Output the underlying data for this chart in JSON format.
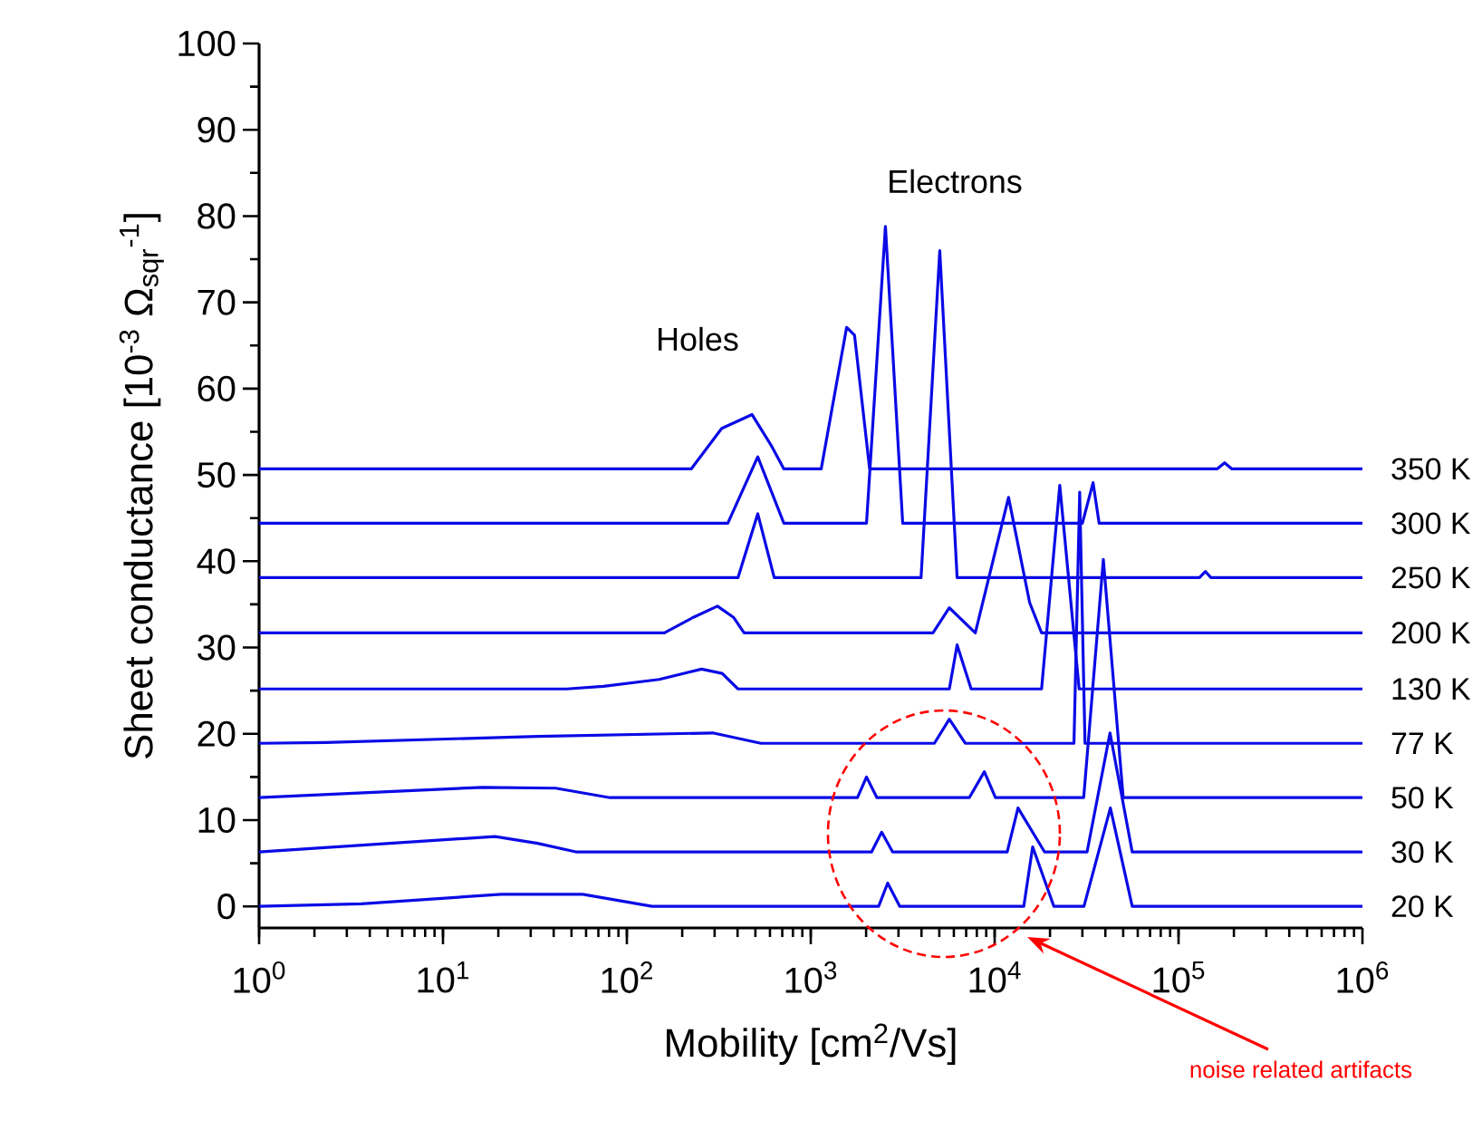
{
  "chart_data": {
    "type": "line",
    "xlabel": "Mobility [cm$^{2}$/Vs]",
    "ylabel": "Sheet conductance [10$^{-3}$ Ω$_{sqr}$$^{-1}$]",
    "annotations": [
      "Holes",
      "Electrons",
      "noise related artifacts"
    ],
    "log": "x",
    "grid": false,
    "legend": false,
    "xlim": [
      1,
      1000000
    ],
    "xticks": [
      {
        "value": 1,
        "label": "10$^{0}$"
      },
      {
        "value": 10,
        "label": "10$^{1}$"
      },
      {
        "value": 100,
        "label": "10$^{2}$"
      },
      {
        "value": 1000,
        "label": "10$^{3}$"
      },
      {
        "value": 10000,
        "label": "10$^{4}$"
      },
      {
        "value": 100000,
        "label": "10$^{5}$"
      },
      {
        "value": 1000000,
        "label": "10$^{6}$"
      }
    ],
    "ylim": [
      -2.5,
      100
    ],
    "yticks": [
      0,
      10,
      20,
      30,
      40,
      50,
      60,
      70,
      80,
      90,
      100
    ],
    "series": [
      {
        "name": "350 K",
        "color": "#0a0ae6",
        "x": [
          1,
          224,
          328,
          479,
          614,
          714,
          1140,
          1567,
          1730,
          2090,
          162000,
          178000,
          195000,
          1000000
        ],
        "values": [
          50.7,
          50.7,
          55.4,
          57.0,
          53.3,
          50.7,
          50.7,
          67.1,
          66.2,
          50.7,
          50.7,
          51.4,
          50.7,
          50.7
        ]
      },
      {
        "name": "300 K",
        "color": "#0a0ae6",
        "x": [
          1,
          354,
          515,
          714,
          2010,
          2547,
          3163,
          30000,
          34300,
          37000,
          1000000
        ],
        "values": [
          44.4,
          44.4,
          52.1,
          44.4,
          44.4,
          78.8,
          44.4,
          44.4,
          49.1,
          44.4,
          44.4
        ]
      },
      {
        "name": "250 K",
        "color": "#0a0ae6",
        "x": [
          1,
          402,
          515,
          633,
          3980,
          5030,
          6250,
          130000,
          140000,
          150000,
          1000000
        ],
        "values": [
          38.1,
          38.1,
          45.5,
          38.1,
          38.1,
          76.0,
          38.1,
          38.1,
          38.8,
          38.1,
          38.1
        ]
      },
      {
        "name": "200 K",
        "color": "#0a0ae6",
        "x": [
          1,
          160,
          230,
          311,
          380,
          434,
          4620,
          5670,
          7850,
          11900,
          15500,
          18000,
          1000000
        ],
        "values": [
          31.7,
          31.7,
          33.5,
          34.8,
          33.5,
          31.7,
          31.7,
          34.6,
          31.7,
          47.4,
          35.2,
          31.7,
          31.7
        ]
      },
      {
        "name": "130 K",
        "color": "#0a0ae6",
        "x": [
          1,
          47,
          74.5,
          150,
          255,
          330,
          402,
          5670,
          6250,
          7450,
          18000,
          22600,
          28800,
          1000000
        ],
        "values": [
          25.2,
          25.2,
          25.5,
          26.3,
          27.5,
          27.0,
          25.2,
          25.2,
          30.3,
          25.2,
          25.2,
          48.8,
          25.2,
          25.2
        ]
      },
      {
        "name": "77 K",
        "color": "#0a0ae6",
        "x": [
          1,
          2.3,
          32.7,
          293,
          536,
          4700,
          5670,
          6920,
          27000,
          29000,
          31000,
          1000000
        ],
        "values": [
          18.9,
          19.0,
          19.7,
          20.1,
          18.9,
          18.9,
          21.7,
          18.9,
          18.9,
          48.0,
          18.9,
          18.9
        ]
      },
      {
        "name": "50 K",
        "color": "#0a0ae6",
        "x": [
          1,
          16.5,
          41,
          81,
          1795,
          2010,
          2290,
          7280,
          8790,
          10100,
          30500,
          39000,
          50000,
          1000000
        ],
        "values": [
          12.6,
          13.8,
          13.7,
          12.6,
          12.6,
          15.0,
          12.6,
          12.6,
          15.6,
          12.6,
          12.6,
          40.2,
          12.6,
          12.6
        ]
      },
      {
        "name": "30 K",
        "color": "#0a0ae6",
        "x": [
          1,
          19.2,
          32.7,
          53.4,
          2140,
          2430,
          2790,
          11700,
          13400,
          18700,
          31800,
          42400,
          56000,
          1000000
        ],
        "values": [
          6.3,
          8.1,
          7.3,
          6.3,
          6.3,
          8.6,
          6.3,
          6.3,
          11.4,
          6.3,
          6.3,
          20.1,
          6.3,
          6.3
        ]
      },
      {
        "name": "20 K",
        "color": "#0a0ae6",
        "x": [
          1,
          3.6,
          20.7,
          57.6,
          137,
          2340,
          2620,
          3050,
          14400,
          16100,
          21000,
          30600,
          42600,
          56000,
          1000000
        ],
        "values": [
          0,
          0.3,
          1.4,
          1.4,
          0,
          0,
          2.7,
          0,
          0,
          6.9,
          0,
          0,
          11.4,
          0,
          0
        ]
      }
    ]
  }
}
